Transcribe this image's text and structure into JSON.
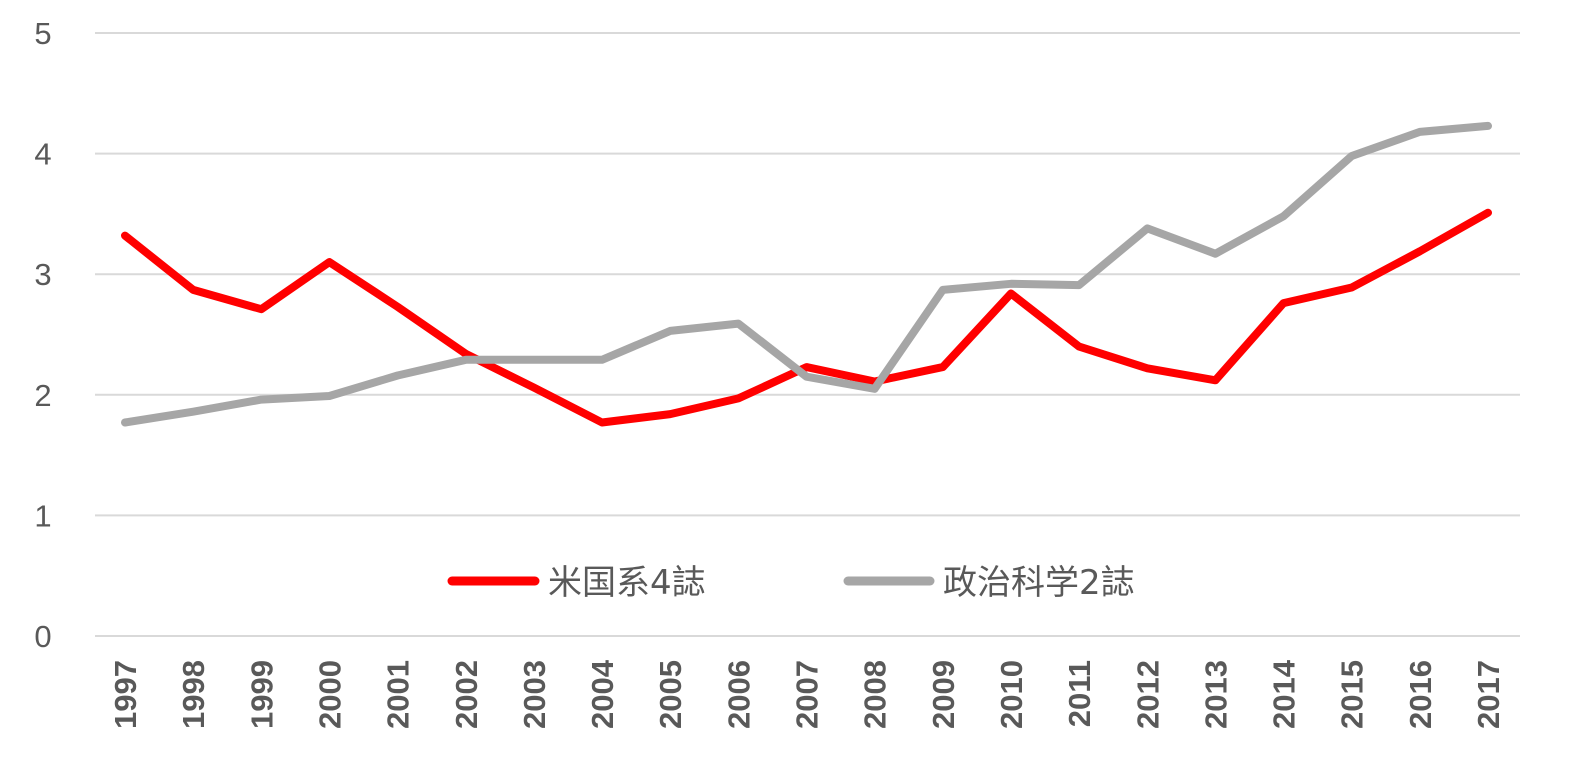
{
  "chart_data": {
    "type": "line",
    "title": "",
    "xlabel": "",
    "ylabel": "",
    "ylim": [
      0,
      5
    ],
    "y_ticks": [
      "0",
      "1",
      "2",
      "3",
      "4",
      "5"
    ],
    "grid": true,
    "legend_position": "bottom-center inside plot",
    "categories": [
      "1997",
      "1998",
      "1999",
      "2000",
      "2001",
      "2002",
      "2003",
      "2004",
      "2005",
      "2006",
      "2007",
      "2008",
      "2009",
      "2010",
      "2011",
      "2012",
      "2013",
      "2014",
      "2015",
      "2016",
      "2017"
    ],
    "series": [
      {
        "name": "米国系4誌",
        "color": "#ff0000",
        "values": [
          3.32,
          2.87,
          2.71,
          3.1,
          2.73,
          2.34,
          2.06,
          1.77,
          1.84,
          1.97,
          2.23,
          2.11,
          2.23,
          2.84,
          2.4,
          2.22,
          2.12,
          2.76,
          2.89,
          3.19,
          3.51
        ]
      },
      {
        "name": "政治科学2誌",
        "color": "#a6a6a6",
        "values": [
          1.77,
          1.86,
          1.96,
          1.99,
          2.16,
          2.29,
          2.29,
          2.29,
          2.53,
          2.59,
          2.15,
          2.05,
          2.87,
          2.92,
          2.91,
          3.38,
          3.17,
          3.48,
          3.98,
          4.18,
          4.23
        ]
      }
    ]
  }
}
